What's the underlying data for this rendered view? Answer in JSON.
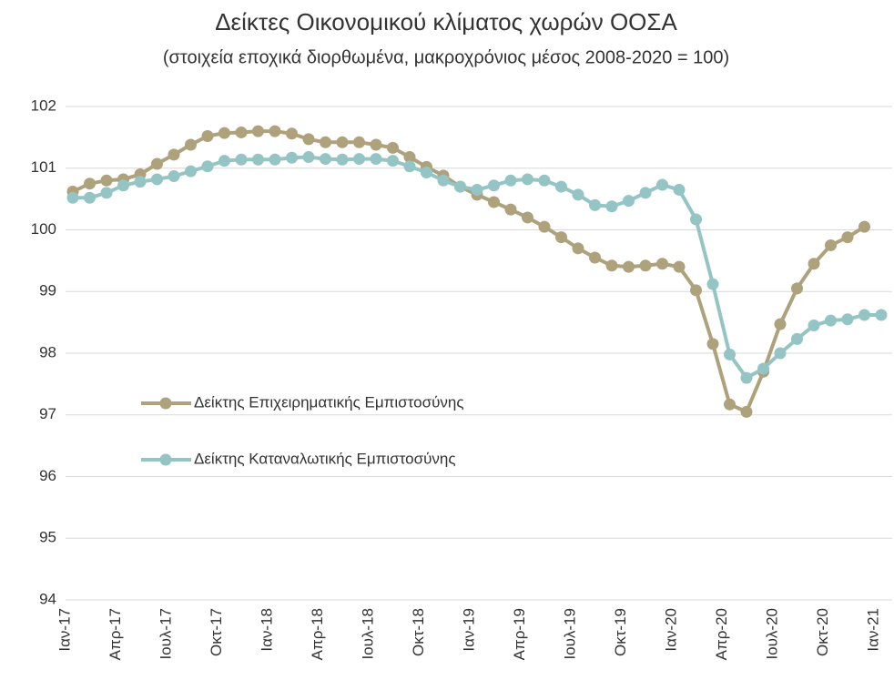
{
  "chart_data": {
    "type": "line",
    "title": "Δείκτες Οικονομικού κλίματος χωρών ΟΟΣΑ",
    "subtitle": "(στοιχεία εποχικά διορθωμένα, μακροχρόνιος μέσος 2008-2020 = 100)",
    "categories": [
      "Ιαν-17",
      null,
      null,
      "Απρ-17",
      null,
      null,
      "Ιουλ-17",
      null,
      null,
      "Οκτ-17",
      null,
      null,
      "Ιαν-18",
      null,
      null,
      "Απρ-18",
      null,
      null,
      "Ιουλ-18",
      null,
      null,
      "Οκτ-18",
      null,
      null,
      "Ιαν-19",
      null,
      null,
      "Απρ-19",
      null,
      null,
      "Ιουλ-19",
      null,
      null,
      "Οκτ-19",
      null,
      null,
      "Ιαν-20",
      null,
      null,
      "Απρ-20",
      null,
      null,
      "Ιουλ-20",
      null,
      null,
      "Οκτ-20",
      null,
      null,
      "Ιαν-21"
    ],
    "series": [
      {
        "name": "Δείκτης Επιχειρηματικής Εμπιστοσύνης",
        "color": "#ada27c",
        "values": [
          100.62,
          100.75,
          100.8,
          100.82,
          100.9,
          101.07,
          101.22,
          101.38,
          101.52,
          101.57,
          101.58,
          101.6,
          101.6,
          101.56,
          101.47,
          101.42,
          101.42,
          101.42,
          101.38,
          101.33,
          101.18,
          101.02,
          100.88,
          100.7,
          100.57,
          100.45,
          100.33,
          100.2,
          100.05,
          99.88,
          99.7,
          99.55,
          99.42,
          99.4,
          99.42,
          99.45,
          99.4,
          99.02,
          98.15,
          97.17,
          97.05,
          97.7,
          98.47,
          99.05,
          99.45,
          99.75,
          99.88,
          100.05,
          null
        ]
      },
      {
        "name": "Δείκτης Καταναλωτικής Εμπιστοσύνης",
        "color": "#94c5c4",
        "values": [
          100.52,
          100.52,
          100.6,
          100.72,
          100.78,
          100.82,
          100.87,
          100.95,
          101.03,
          101.12,
          101.14,
          101.14,
          101.14,
          101.17,
          101.18,
          101.15,
          101.14,
          101.15,
          101.15,
          101.12,
          101.03,
          100.93,
          100.8,
          100.7,
          100.65,
          100.72,
          100.8,
          100.82,
          100.8,
          100.7,
          100.57,
          100.4,
          100.38,
          100.47,
          100.6,
          100.73,
          100.65,
          100.17,
          99.12,
          97.98,
          97.6,
          97.75,
          98.0,
          98.23,
          98.45,
          98.53,
          98.55,
          98.62,
          98.62
        ]
      }
    ],
    "ylim": [
      94,
      102
    ],
    "yticks": [
      94,
      95,
      96,
      97,
      98,
      99,
      100,
      101,
      102
    ],
    "grid": true
  }
}
